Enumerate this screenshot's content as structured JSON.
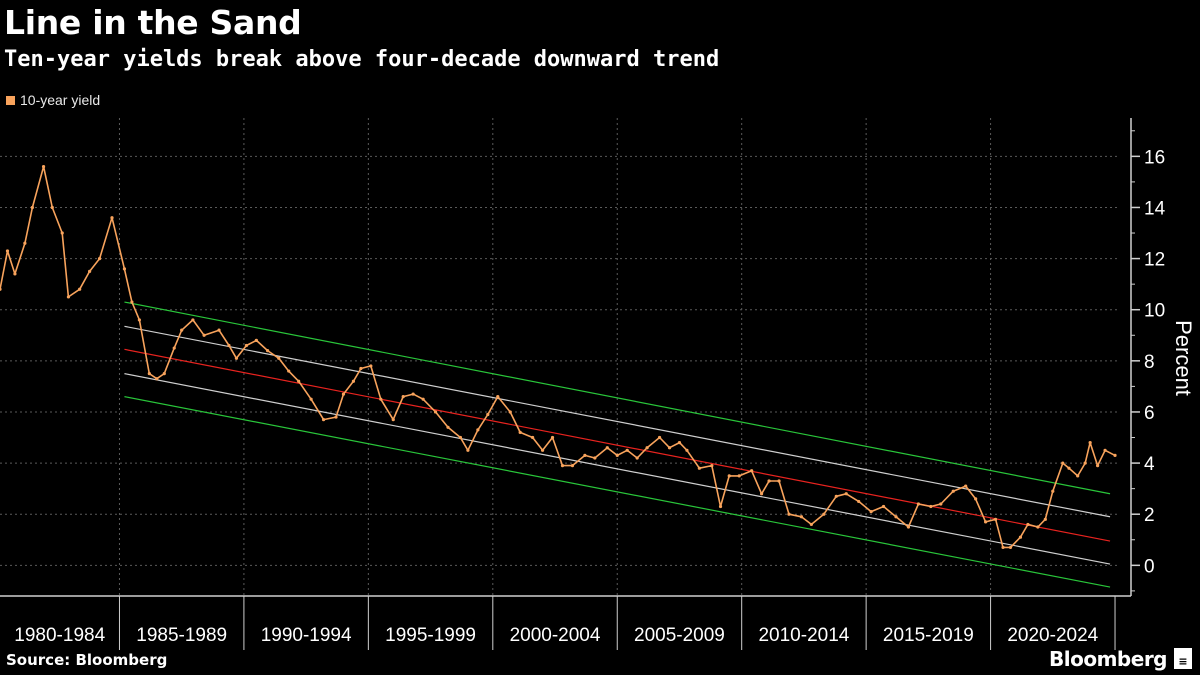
{
  "header": {
    "title": "Line in the Sand",
    "subtitle": "Ten-year yields break above four-decade downward trend"
  },
  "legend": {
    "label": "10-year yield",
    "color": "#f8a35c"
  },
  "footer": {
    "source": "Source: Bloomberg",
    "brand": "Bloomberg",
    "brand_mark": "≡"
  },
  "colors": {
    "series": "#f8a35c",
    "trend_mid": "#e8231f",
    "trend_inner": "#cfcfcf",
    "trend_outer": "#29c53a",
    "grid": "#5a5a5a",
    "axis": "#cfcfcf"
  },
  "chart_data": {
    "type": "line",
    "title": "Line in the Sand",
    "subtitle": "Ten-year yields break above four-decade downward trend",
    "ylabel": "Percent",
    "xlabel": "",
    "ylim": [
      -1.2,
      17.5
    ],
    "xlim": [
      1980.0,
      2025.0
    ],
    "y_ticks": [
      0,
      2,
      4,
      6,
      8,
      10,
      12,
      14,
      16
    ],
    "x_tick_labels": [
      "1980-1984",
      "1985-1989",
      "1990-1994",
      "1995-1999",
      "2000-2004",
      "2005-2009",
      "2010-2014",
      "2015-2019",
      "2020-2024"
    ],
    "x_group_boundaries": [
      1984.8,
      1989.8,
      1994.8,
      1999.8,
      2004.8,
      2009.8,
      2014.8,
      2019.8,
      2024.8
    ],
    "grid": true,
    "legend_position": "top-left",
    "series": [
      {
        "name": "10-year yield",
        "x": [
          1980.0,
          1980.3,
          1980.6,
          1981.0,
          1981.3,
          1981.75,
          1982.1,
          1982.5,
          1982.75,
          1983.2,
          1983.6,
          1984.0,
          1984.5,
          1985.0,
          1985.3,
          1985.6,
          1986.0,
          1986.3,
          1986.6,
          1987.0,
          1987.3,
          1987.75,
          1988.2,
          1988.8,
          1989.2,
          1989.5,
          1989.9,
          1990.3,
          1990.75,
          1991.2,
          1991.6,
          1992.0,
          1992.5,
          1993.0,
          1993.5,
          1993.8,
          1994.2,
          1994.5,
          1994.9,
          1995.3,
          1995.8,
          1996.2,
          1996.6,
          1997.0,
          1997.5,
          1998.0,
          1998.5,
          1998.8,
          1999.2,
          1999.6,
          2000.0,
          2000.5,
          2000.9,
          2001.4,
          2001.8,
          2002.2,
          2002.6,
          2003.0,
          2003.5,
          2003.9,
          2004.4,
          2004.8,
          2005.2,
          2005.6,
          2006.0,
          2006.5,
          2006.9,
          2007.3,
          2007.6,
          2008.1,
          2008.6,
          2008.95,
          2009.3,
          2009.7,
          2010.2,
          2010.6,
          2010.9,
          2011.3,
          2011.7,
          2012.2,
          2012.6,
          2013.1,
          2013.6,
          2014.0,
          2014.5,
          2015.0,
          2015.5,
          2016.0,
          2016.5,
          2016.9,
          2017.4,
          2017.8,
          2018.3,
          2018.8,
          2019.2,
          2019.6,
          2020.0,
          2020.3,
          2020.6,
          2021.0,
          2021.3,
          2021.7,
          2022.0,
          2022.3,
          2022.7,
          2022.95,
          2023.3,
          2023.6,
          2023.8,
          2024.1,
          2024.4,
          2024.8
        ],
        "y": [
          10.8,
          12.3,
          11.4,
          12.6,
          14.0,
          15.6,
          14.0,
          13.0,
          10.5,
          10.8,
          11.5,
          12.0,
          13.6,
          11.6,
          10.3,
          9.6,
          7.5,
          7.3,
          7.5,
          8.5,
          9.2,
          9.6,
          9.0,
          9.2,
          8.6,
          8.1,
          8.6,
          8.8,
          8.4,
          8.1,
          7.6,
          7.2,
          6.5,
          5.7,
          5.8,
          6.7,
          7.2,
          7.7,
          7.8,
          6.5,
          5.7,
          6.6,
          6.7,
          6.5,
          6.0,
          5.4,
          5.0,
          4.5,
          5.3,
          5.9,
          6.6,
          6.0,
          5.2,
          5.0,
          4.5,
          5.0,
          3.9,
          3.9,
          4.3,
          4.2,
          4.6,
          4.3,
          4.5,
          4.2,
          4.6,
          5.0,
          4.6,
          4.8,
          4.5,
          3.8,
          3.9,
          2.3,
          3.5,
          3.5,
          3.7,
          2.8,
          3.3,
          3.3,
          2.0,
          1.9,
          1.6,
          2.0,
          2.7,
          2.8,
          2.5,
          2.1,
          2.3,
          1.9,
          1.5,
          2.4,
          2.3,
          2.4,
          2.9,
          3.1,
          2.6,
          1.7,
          1.8,
          0.7,
          0.7,
          1.1,
          1.6,
          1.5,
          1.8,
          2.9,
          4.0,
          3.8,
          3.5,
          4.0,
          4.8,
          3.9,
          4.5,
          4.3
        ]
      }
    ],
    "trend_channel": {
      "x": [
        1985.0,
        2024.6
      ],
      "lines": [
        {
          "role": "upper-outer",
          "y": [
            10.3,
            2.8
          ]
        },
        {
          "role": "upper-inner",
          "y": [
            9.35,
            1.9
          ]
        },
        {
          "role": "middle",
          "y": [
            8.45,
            0.95
          ]
        },
        {
          "role": "lower-inner",
          "y": [
            7.5,
            0.05
          ]
        },
        {
          "role": "lower-outer",
          "y": [
            6.6,
            -0.85
          ]
        }
      ]
    }
  }
}
